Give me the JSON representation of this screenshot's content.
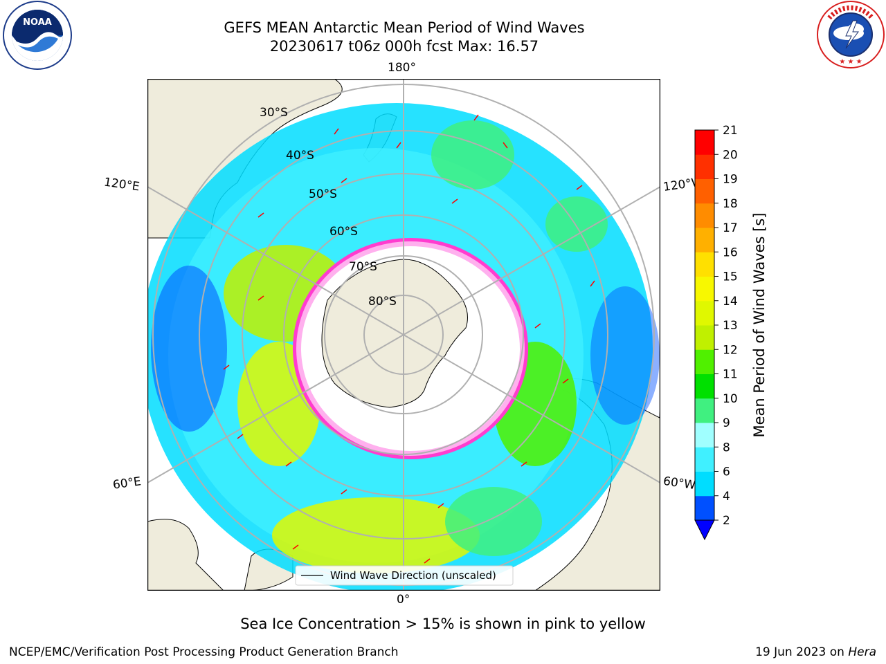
{
  "title": {
    "line1": "GEFS MEAN Antarctic Mean Period of Wind Waves",
    "line2": "20230617 t06z 000h fcst   Max: 16.57"
  },
  "logos": {
    "left": {
      "name": "noaa-logo",
      "text": "NOAA",
      "ring_text": "NATIONAL OCEANIC AND ATMOSPHERIC ADMINISTRATION · U.S. DEPARTMENT OF COMMERCE"
    },
    "right": {
      "name": "nws-logo",
      "ring_text": "NATIONAL WEATHER SERVICE"
    }
  },
  "map": {
    "projection": "south polar stereographic",
    "longitude_labels": {
      "top": "180°",
      "bottom": "0°",
      "upper_left": "120°E",
      "upper_right": "120°W",
      "lower_left": "60°E",
      "lower_right": "60°W"
    },
    "latitude_labels": [
      "30°S",
      "40°S",
      "50°S",
      "60°S",
      "70°S",
      "80°S"
    ],
    "legend": "Wind Wave Direction (unscaled)",
    "arrow_color": "#ff0000",
    "land_color": "#efecdc",
    "ice_colors": [
      "#ff3ccf",
      "#ffb0ee",
      "#ffd080",
      "#ffff60"
    ]
  },
  "colorbar": {
    "label": "Mean Period of Wind Waves [s]",
    "ticks": [
      "2",
      "4",
      "6",
      "8",
      "9",
      "10",
      "11",
      "12",
      "13",
      "14",
      "15",
      "16",
      "17",
      "18",
      "19",
      "20",
      "21"
    ],
    "colors": [
      "#0050ff",
      "#00ddff",
      "#40f0ff",
      "#a0ffff",
      "#40f080",
      "#00e000",
      "#50f000",
      "#c0f000",
      "#e0f800",
      "#f8f800",
      "#ffe000",
      "#ffb000",
      "#ff8c00",
      "#ff6000",
      "#ff3000",
      "#ff0000"
    ],
    "under_color": "#0000ff"
  },
  "subtitle": "Sea Ice Concentration > 15% is shown in pink to yellow",
  "footer": {
    "left": "NCEP/EMC/Verification Post Processing Product Generation Branch",
    "right_date": "19 Jun 2023 on ",
    "right_host": "Hera"
  }
}
